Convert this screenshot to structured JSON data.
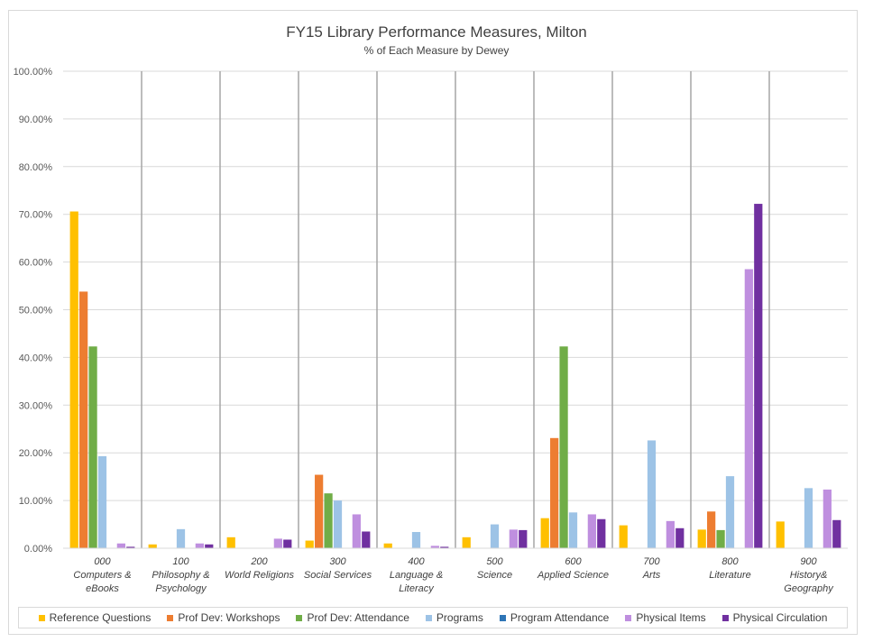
{
  "chart_data": {
    "type": "bar",
    "title": "FY15 Library Performance Measures, Milton",
    "subtitle": "% of Each Measure by Dewey",
    "xlabel": "",
    "ylabel": "",
    "ylim": [
      0,
      100
    ],
    "yticks": [
      "0.00%",
      "10.00%",
      "20.00%",
      "30.00%",
      "40.00%",
      "50.00%",
      "60.00%",
      "70.00%",
      "80.00%",
      "90.00%",
      "100.00%"
    ],
    "grid": true,
    "legend": "bottom",
    "categories": [
      [
        "000",
        "Computers &",
        "eBooks"
      ],
      [
        "100",
        "Philosophy &",
        "Psychology"
      ],
      [
        "200",
        "World Religions"
      ],
      [
        "300",
        "Social Services"
      ],
      [
        "400",
        "Language &",
        "Literacy"
      ],
      [
        "500",
        "Science"
      ],
      [
        "600",
        "Applied Science"
      ],
      [
        "700",
        "Arts"
      ],
      [
        "800",
        "Literature"
      ],
      [
        "900",
        "History&",
        "Geography"
      ]
    ],
    "series": [
      {
        "name": "Reference Questions",
        "color": "#ffc000",
        "values": [
          70.6,
          0.8,
          2.3,
          1.6,
          1.0,
          2.3,
          6.3,
          4.8,
          3.9,
          5.6
        ]
      },
      {
        "name": "Prof Dev: Workshops",
        "color": "#ed7d31",
        "values": [
          53.8,
          0,
          0,
          15.4,
          0,
          0,
          23.1,
          0,
          7.7,
          0
        ]
      },
      {
        "name": "Prof Dev: Attendance",
        "color": "#70ad47",
        "values": [
          42.3,
          0,
          0,
          11.5,
          0,
          0,
          42.3,
          0,
          3.8,
          0
        ]
      },
      {
        "name": "Programs",
        "color": "#9dc3e6",
        "values": [
          19.3,
          4.0,
          0,
          10.0,
          3.4,
          5.0,
          7.5,
          22.6,
          15.1,
          12.6
        ]
      },
      {
        "name": "Program Attendance",
        "color": "#2e75b6",
        "values": [
          0,
          0,
          0,
          0,
          0,
          0,
          0,
          0,
          0,
          0
        ]
      },
      {
        "name": "Physical Items",
        "color": "#bf8fdf",
        "values": [
          1.0,
          1.0,
          2.0,
          7.1,
          0.5,
          3.9,
          7.1,
          5.7,
          58.5,
          12.3
        ]
      },
      {
        "name": "Physical Circulation",
        "color": "#7030a0",
        "values": [
          0.3,
          0.8,
          1.8,
          3.5,
          0.3,
          3.8,
          6.1,
          4.2,
          72.2,
          5.9
        ]
      }
    ]
  }
}
